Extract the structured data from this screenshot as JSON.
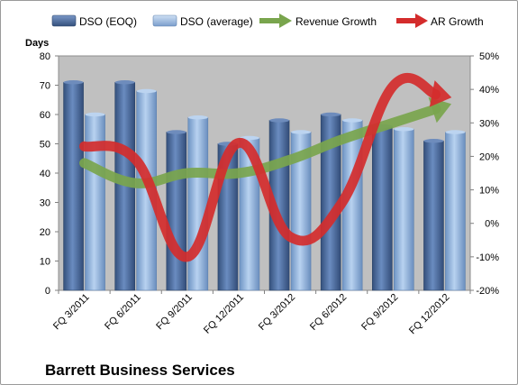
{
  "chart_data": {
    "type": "bar",
    "title": "",
    "footer_title": "Barrett Business Services",
    "categories": [
      "FQ 3/2011",
      "FQ 6/2011",
      "FQ 9/2011",
      "FQ 12/2011",
      "FQ 3/2012",
      "FQ 6/2012",
      "FQ 9/2012",
      "FQ 12/2012"
    ],
    "left_axis": {
      "label": "Days",
      "ylim": [
        0,
        80
      ],
      "ticks": [
        0,
        10,
        20,
        30,
        40,
        50,
        60,
        70,
        80
      ]
    },
    "right_axis": {
      "ylim": [
        -20,
        50
      ],
      "ticks": [
        "-20%",
        "-10%",
        "0%",
        "10%",
        "20%",
        "30%",
        "40%",
        "50%"
      ]
    },
    "series": [
      {
        "name": "DSO (EOQ)",
        "type": "bar",
        "axis": "left",
        "color": "#4a6898",
        "values": [
          71,
          71,
          54,
          50,
          58,
          60,
          56,
          51
        ]
      },
      {
        "name": "DSO (average)",
        "type": "bar",
        "axis": "left",
        "color": "#8eb0d8",
        "values": [
          60,
          68,
          59,
          52,
          54,
          58,
          55,
          54
        ]
      },
      {
        "name": "Revenue Growth",
        "type": "line",
        "axis": "right",
        "color": "#79a54d",
        "values": [
          18,
          12,
          15,
          15,
          19,
          25,
          30,
          35
        ]
      },
      {
        "name": "AR Growth",
        "type": "line",
        "axis": "right",
        "color": "#d42c2c",
        "values": [
          23,
          19,
          -10,
          24,
          -4,
          6,
          41,
          38
        ]
      }
    ],
    "legend_position": "top",
    "grid": false,
    "plot_background": "#c0c0c0"
  }
}
